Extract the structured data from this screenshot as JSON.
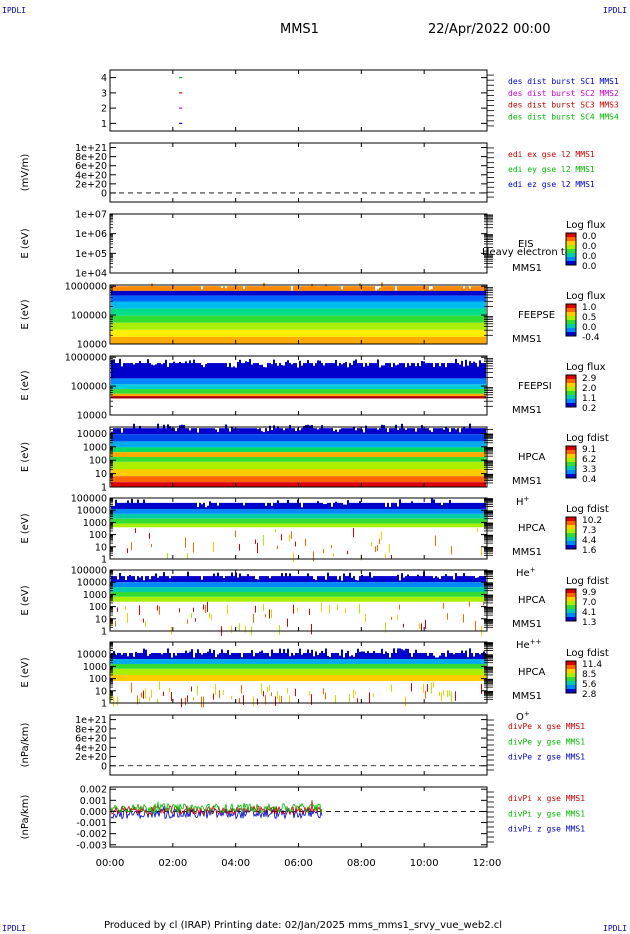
{
  "page": {
    "corner_tl": "IPDLI",
    "corner_tr": "IPDLI",
    "corner_bl": "IPDLI",
    "corner_br": "IPDLI",
    "spacecraft": "MMS1",
    "datetime": "22/Apr/2022 00:00",
    "footer": "Produced by cl (IRAP)   Printing date: 02/Jan/2025   mms_mms1_srvy_vue_web2.cl"
  },
  "chart_data": [
    {
      "type": "line",
      "panel": "burst",
      "ylabel": "",
      "ylim": [
        0.5,
        4.5
      ],
      "yticks": [
        {
          "v": 4,
          "t": "4"
        },
        {
          "v": 3,
          "t": "3"
        },
        {
          "v": 2,
          "t": "2"
        },
        {
          "v": 1,
          "t": "1"
        }
      ],
      "legend": [
        {
          "text": "des dist burst SC1 MMS1",
          "color": "#0000cc"
        },
        {
          "text": "des dist burst SC2 MMS2",
          "color": "#cc00cc"
        },
        {
          "text": "des dist burst SC3 MMS3",
          "color": "#cc0000"
        },
        {
          "text": "des dist burst SC4 MMS4",
          "color": "#00bb00"
        }
      ],
      "series": [
        {
          "color": "#00bb00",
          "y": 4,
          "x": [
            2.25
          ]
        },
        {
          "color": "#cc0000",
          "y": 3,
          "x": [
            2.25
          ]
        },
        {
          "color": "#cc00cc",
          "y": 2,
          "x": [
            2.25
          ]
        },
        {
          "color": "#0000cc",
          "y": 1,
          "x": [
            2.25
          ]
        }
      ]
    },
    {
      "type": "line",
      "panel": "edi",
      "ylabel": "(mV/m)",
      "ylim": [
        -2e+20,
        1.1e+21
      ],
      "yticks": [
        {
          "v": 1e+21,
          "t": "1e+21"
        },
        {
          "v": 8e+20,
          "t": "8e+20"
        },
        {
          "v": 6e+20,
          "t": "6e+20"
        },
        {
          "v": 4e+20,
          "t": "4e+20"
        },
        {
          "v": 2e+20,
          "t": "2e+20"
        },
        {
          "v": 0,
          "t": "0"
        }
      ],
      "zero_line": true,
      "legend": [
        {
          "text": "edi ex gse l2 MMS1",
          "color": "#cc0000"
        },
        {
          "text": "edi ey gse l2 MMS1",
          "color": "#00bb00"
        },
        {
          "text": "edi ez gse l2 MMS1",
          "color": "#0000cc"
        }
      ]
    },
    {
      "type": "heatmap",
      "panel": "eis",
      "ylabel": "E (eV)",
      "ylog": true,
      "ylim": [
        10000.0,
        10000000.0
      ],
      "yticks": [
        {
          "v": 10000000.0,
          "t": "1e+07"
        },
        {
          "v": 1000000.0,
          "t": "1e+06"
        },
        {
          "v": 100000.0,
          "t": "1e+05"
        },
        {
          "v": 10000.0,
          "t": "1e+04"
        }
      ],
      "instrument": "EIS",
      "instrument2": "MMS1",
      "species_note": "Heavy electron to",
      "colorbar_title": "Log flux",
      "colorbar_ticks": [
        "0.0",
        "0.0",
        "0.0",
        "0.0"
      ],
      "empty": true
    },
    {
      "type": "heatmap",
      "panel": "feeps_e",
      "ylabel": "E (eV)",
      "ylog": true,
      "ylim": [
        10000.0,
        1100000.0
      ],
      "yticks": [
        {
          "v": 1000000.0,
          "t": "1000000"
        },
        {
          "v": 100000.0,
          "t": "100000"
        },
        {
          "v": 10000.0,
          "t": "10000"
        }
      ],
      "instrument": "FEEPSE",
      "instrument2": "MMS1",
      "colorbar_title": "Log flux",
      "colorbar_ticks": [
        "1.0",
        "0.5",
        "0.0",
        "-0.4"
      ],
      "coverage_end_hours": 12,
      "bands": [
        {
          "from": 0.9,
          "to": 0.98,
          "c": "#ff8800"
        },
        {
          "from": 0.82,
          "to": 0.9,
          "c": "#0000cc"
        },
        {
          "from": 0.72,
          "to": 0.82,
          "c": "#0066ff"
        },
        {
          "from": 0.6,
          "to": 0.72,
          "c": "#00bbee"
        },
        {
          "from": 0.48,
          "to": 0.6,
          "c": "#00dd88"
        },
        {
          "from": 0.36,
          "to": 0.48,
          "c": "#33dd33"
        },
        {
          "from": 0.24,
          "to": 0.36,
          "c": "#aaee00"
        },
        {
          "from": 0.12,
          "to": 0.24,
          "c": "#ffee00"
        },
        {
          "from": 0.0,
          "to": 0.12,
          "c": "#ffaa00"
        }
      ],
      "speckle": 0.15
    },
    {
      "type": "heatmap",
      "panel": "feeps_i",
      "ylabel": "E (eV)",
      "ylog": true,
      "ylim": [
        10000.0,
        1100000.0
      ],
      "yticks": [
        {
          "v": 1000000.0,
          "t": "1000000"
        },
        {
          "v": 100000.0,
          "t": "100000"
        },
        {
          "v": 10000.0,
          "t": "10000"
        }
      ],
      "instrument": "FEEPSI",
      "instrument2": "MMS1",
      "colorbar_title": "Log flux",
      "colorbar_ticks": [
        "2.9",
        "2.0",
        "1.1",
        "0.2"
      ],
      "coverage_end_hours": 12,
      "bands": [
        {
          "from": 0.62,
          "to": 0.88,
          "c": "#0000cc"
        },
        {
          "from": 0.52,
          "to": 0.62,
          "c": "#0088ff"
        },
        {
          "from": 0.44,
          "to": 0.52,
          "c": "#00ccdd"
        },
        {
          "from": 0.36,
          "to": 0.44,
          "c": "#33dd33"
        },
        {
          "from": 0.32,
          "to": 0.36,
          "c": "#ffaa00"
        },
        {
          "from": 0.28,
          "to": 0.32,
          "c": "#aa0000"
        }
      ],
      "speckle": 0.5
    },
    {
      "type": "heatmap",
      "panel": "hpca_h",
      "ylabel": "E (eV)",
      "ylog": true,
      "ylim": [
        1,
        30000.0
      ],
      "yticks": [
        {
          "v": 10000.0,
          "t": "10000"
        },
        {
          "v": 1000.0,
          "t": "1000"
        },
        {
          "v": 100.0,
          "t": "100"
        },
        {
          "v": 10,
          "t": "10"
        },
        {
          "v": 1,
          "t": "1"
        }
      ],
      "instrument": "HPCA",
      "instrument2": "MMS1",
      "species": "H",
      "species_sup": "+",
      "colorbar_title": "Log fdist",
      "colorbar_ticks": [
        "9.1",
        "6.2",
        "3.3",
        "0.4"
      ],
      "coverage_end_hours": 12,
      "bands": [
        {
          "from": 0.88,
          "to": 0.98,
          "c": "#0000cc"
        },
        {
          "from": 0.76,
          "to": 0.88,
          "c": "#0044ee"
        },
        {
          "from": 0.66,
          "to": 0.76,
          "c": "#00aaee"
        },
        {
          "from": 0.58,
          "to": 0.66,
          "c": "#00dd66"
        },
        {
          "from": 0.5,
          "to": 0.58,
          "c": "#ffaa00"
        },
        {
          "from": 0.42,
          "to": 0.5,
          "c": "#33dd33"
        },
        {
          "from": 0.3,
          "to": 0.42,
          "c": "#aaee00"
        },
        {
          "from": 0.18,
          "to": 0.3,
          "c": "#ffcc00"
        },
        {
          "from": 0.08,
          "to": 0.18,
          "c": "#ff6600"
        },
        {
          "from": 0.0,
          "to": 0.08,
          "c": "#dd0000"
        }
      ],
      "speckle": 0.35
    },
    {
      "type": "heatmap",
      "panel": "hpca_he",
      "ylabel": "E (eV)",
      "ylog": true,
      "ylim": [
        1,
        100000.0
      ],
      "yticks": [
        {
          "v": 100000.0,
          "t": "100000"
        },
        {
          "v": 10000.0,
          "t": "10000"
        },
        {
          "v": 1000.0,
          "t": "1000"
        },
        {
          "v": 100.0,
          "t": "100"
        },
        {
          "v": 10,
          "t": "10"
        },
        {
          "v": 1,
          "t": "1"
        }
      ],
      "instrument": "HPCA",
      "instrument2": "MMS1",
      "species": "He",
      "species_sup": "+",
      "colorbar_title": "Log fdist",
      "colorbar_ticks": [
        "10.2",
        "7.3",
        "4.4",
        "1.6"
      ],
      "coverage_end_hours": 12,
      "bands": [
        {
          "from": 0.82,
          "to": 0.92,
          "c": "#0000cc"
        },
        {
          "from": 0.74,
          "to": 0.82,
          "c": "#0088ff"
        },
        {
          "from": 0.66,
          "to": 0.74,
          "c": "#00ccaa"
        },
        {
          "from": 0.58,
          "to": 0.66,
          "c": "#33dd33"
        },
        {
          "from": 0.52,
          "to": 0.58,
          "c": "#aaee00"
        }
      ],
      "speckle": 0.2,
      "sparse_low": true
    },
    {
      "type": "heatmap",
      "panel": "hpca_hepp",
      "ylabel": "E (eV)",
      "ylog": true,
      "ylim": [
        1,
        100000.0
      ],
      "yticks": [
        {
          "v": 100000.0,
          "t": "100000"
        },
        {
          "v": 10000.0,
          "t": "10000"
        },
        {
          "v": 1000.0,
          "t": "1000"
        },
        {
          "v": 100.0,
          "t": "100"
        },
        {
          "v": 10,
          "t": "10"
        },
        {
          "v": 1,
          "t": "1"
        }
      ],
      "instrument": "HPCA",
      "instrument2": "MMS1",
      "species": "He",
      "species_sup": "++",
      "colorbar_title": "Log fdist",
      "colorbar_ticks": [
        "9.9",
        "7.0",
        "4.1",
        "1.3"
      ],
      "coverage_end_hours": 12,
      "bands": [
        {
          "from": 0.8,
          "to": 0.9,
          "c": "#0000cc"
        },
        {
          "from": 0.72,
          "to": 0.8,
          "c": "#0088ff"
        },
        {
          "from": 0.64,
          "to": 0.72,
          "c": "#00ccaa"
        },
        {
          "from": 0.56,
          "to": 0.64,
          "c": "#33dd33"
        },
        {
          "from": 0.48,
          "to": 0.56,
          "c": "#aaee00"
        }
      ],
      "speckle": 0.3,
      "sparse_low": true
    },
    {
      "type": "heatmap",
      "panel": "hpca_o",
      "ylabel": "E (eV)",
      "ylog": true,
      "ylim": [
        1,
        100000.0
      ],
      "yticks": [
        {
          "v": 10000.0,
          "t": "10000"
        },
        {
          "v": 1000.0,
          "t": "1000"
        },
        {
          "v": 100.0,
          "t": "100"
        },
        {
          "v": 10,
          "t": "10"
        },
        {
          "v": 1,
          "t": "1"
        }
      ],
      "instrument": "HPCA",
      "instrument2": "MMS1",
      "species": "O",
      "species_sup": "+",
      "colorbar_title": "Log fdist",
      "colorbar_ticks": [
        "11.4",
        "8.5",
        "5.6",
        "2.8"
      ],
      "coverage_end_hours": 12,
      "bands": [
        {
          "from": 0.72,
          "to": 0.82,
          "c": "#0000cc"
        },
        {
          "from": 0.64,
          "to": 0.72,
          "c": "#00aaee"
        },
        {
          "from": 0.56,
          "to": 0.64,
          "c": "#33dd33"
        },
        {
          "from": 0.46,
          "to": 0.56,
          "c": "#aaee00"
        },
        {
          "from": 0.36,
          "to": 0.46,
          "c": "#ffcc00"
        }
      ],
      "speckle": 0.45,
      "sparse_low": true
    },
    {
      "type": "line",
      "panel": "divpe",
      "ylabel": "(nPa/km)",
      "ylim": [
        -2e+20,
        1.1e+21
      ],
      "yticks": [
        {
          "v": 1e+21,
          "t": "1e+21"
        },
        {
          "v": 8e+20,
          "t": "8e+20"
        },
        {
          "v": 6e+20,
          "t": "6e+20"
        },
        {
          "v": 4e+20,
          "t": "4e+20"
        },
        {
          "v": 2e+20,
          "t": "2e+20"
        },
        {
          "v": 0,
          "t": "0"
        }
      ],
      "zero_line": true,
      "legend": [
        {
          "text": "divPe x gse MMS1",
          "color": "#cc0000"
        },
        {
          "text": "divPe y gse MMS1",
          "color": "#00bb00"
        },
        {
          "text": "divPe z gse MMS1",
          "color": "#0000cc"
        }
      ]
    },
    {
      "type": "line",
      "panel": "divpi",
      "ylabel": "(nPa/km)",
      "ylim": [
        -0.0032,
        0.0022
      ],
      "yticks": [
        {
          "v": 0.002,
          "t": "0.002"
        },
        {
          "v": 0.001,
          "t": "0.001"
        },
        {
          "v": 0,
          "t": "0.000"
        },
        {
          "v": -0.001,
          "t": "-0.001"
        },
        {
          "v": -0.002,
          "t": "-0.002"
        },
        {
          "v": -0.003,
          "t": "-0.003"
        }
      ],
      "zero_line": true,
      "coverage_end_hours": 6.75,
      "legend": [
        {
          "text": "divPi x gse MMS1",
          "color": "#cc0000"
        },
        {
          "text": "divPi y gse MMS1",
          "color": "#00bb00"
        },
        {
          "text": "divPi z gse MMS1",
          "color": "#0000cc"
        }
      ],
      "series": [
        {
          "color": "#0000cc",
          "center": -0.0002,
          "amp": 0.00045
        },
        {
          "color": "#cc0000",
          "center": 0.0001,
          "amp": 0.0004
        },
        {
          "color": "#00bb00",
          "center": 0.0003,
          "amp": 0.0004
        }
      ]
    }
  ],
  "xaxis": {
    "xlim": [
      0,
      12
    ],
    "ticks": [
      {
        "v": 0,
        "t": "00:00"
      },
      {
        "v": 2,
        "t": "02:00"
      },
      {
        "v": 4,
        "t": "04:00"
      },
      {
        "v": 6,
        "t": "06:00"
      },
      {
        "v": 8,
        "t": "08:00"
      },
      {
        "v": 10,
        "t": "10:00"
      },
      {
        "v": 12,
        "t": "12:00"
      }
    ]
  }
}
